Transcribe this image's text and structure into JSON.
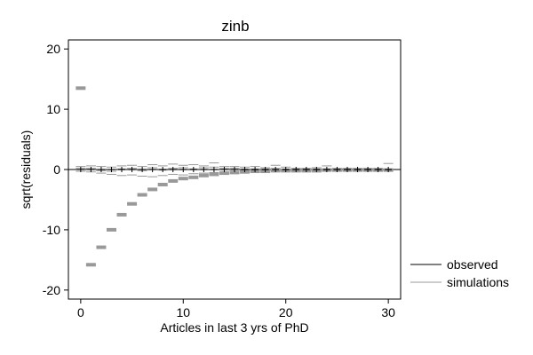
{
  "chart_data": {
    "type": "scatter",
    "title": "zinb",
    "xlabel": "Articles in last 3 yrs of PhD",
    "ylabel": "sqrt(residuals)",
    "xlim": [
      -1.2,
      31.2
    ],
    "ylim": [
      -21.5,
      21.5
    ],
    "x_ticks": [
      0,
      10,
      20,
      30
    ],
    "y_ticks": [
      -20,
      -10,
      0,
      10,
      20
    ],
    "reference_line_y": 0,
    "legend": {
      "placement": "right",
      "entries": [
        {
          "label": "observed",
          "color": "#000000"
        },
        {
          "label": "simulations",
          "color": "#999999"
        }
      ]
    },
    "series": [
      {
        "name": "observed",
        "color": "#000000",
        "x": [
          0,
          1,
          2,
          3,
          4,
          5,
          6,
          7,
          8,
          9,
          10,
          11,
          12,
          13,
          14,
          15,
          16,
          17,
          18,
          19,
          20,
          21,
          22,
          23,
          24,
          25,
          26,
          27,
          28,
          29,
          30
        ],
        "values": [
          0,
          0,
          0,
          0,
          0,
          0,
          0,
          0,
          0,
          0,
          0,
          0,
          0,
          0,
          0,
          0,
          0,
          0,
          0,
          0,
          0,
          0,
          0,
          0,
          0,
          0,
          0,
          0,
          0,
          0,
          0
        ]
      },
      {
        "name": "simulations",
        "color": "#999999",
        "x": [
          0,
          1,
          2,
          3,
          4,
          5,
          6,
          7,
          8,
          9,
          10,
          11,
          12,
          13,
          14,
          15,
          16,
          17,
          18,
          19,
          20,
          21,
          22,
          23,
          24,
          25,
          26,
          27,
          28,
          29,
          30
        ],
        "extreme_values": [
          13.5,
          -15.8,
          -12.9,
          -10,
          -7.5,
          -5.7,
          -4.2,
          -3.3,
          -2.5,
          -1.9,
          -1.5,
          -1.3,
          -1,
          -0.8,
          -0.6,
          -0.5,
          -0.4,
          -0.3,
          -0.3,
          -0.2,
          -0.2,
          -0.2,
          -0.2,
          -0.2,
          -0.1,
          -0.1,
          -0.1,
          -0.1,
          -0.1,
          -0.1,
          -0.1
        ],
        "spread": [
          [
            0.5,
            0.2,
            -0.3
          ],
          [
            0.6,
            0.2,
            -0.4
          ],
          [
            0.5,
            -0.2,
            -0.6
          ],
          [
            0.4,
            -0.3,
            -0.8
          ],
          [
            0.6,
            0.1,
            -1
          ],
          [
            0.7,
            0.2,
            -0.9
          ],
          [
            0.5,
            -0.2,
            -1.1
          ],
          [
            0.8,
            0.3,
            -1.2
          ],
          [
            0.6,
            -0.1,
            -1
          ],
          [
            0.9,
            0.2,
            -0.8
          ],
          [
            0.7,
            0.3,
            -0.9
          ],
          [
            0.8,
            0.1,
            -0.7
          ],
          [
            0.6,
            0.3,
            -0.6
          ],
          [
            1.1,
            0.4,
            -0.5
          ],
          [
            0.5,
            0.2,
            -0.4
          ],
          [
            0.5,
            0.2,
            -0.3
          ],
          [
            0.4,
            0.1,
            -0.4
          ],
          [
            0.5,
            0.1,
            -0.3
          ],
          [
            0.3,
            0.1,
            -0.3
          ],
          [
            0.7,
            0.2,
            -0.2
          ],
          [
            0.4,
            0.1,
            -0.2
          ],
          [
            0.2,
            0.1,
            -0.2
          ],
          [
            0.2,
            0.1,
            -0.1
          ],
          [
            0.3,
            0.1,
            -0.2
          ],
          [
            0.6,
            0.1,
            -0.1
          ],
          [
            0.2,
            0.1,
            -0.1
          ],
          [
            0.2,
            0.1,
            -0.1
          ],
          [
            0.2,
            0.1,
            -0.1
          ],
          [
            0.2,
            0.1,
            -0.1
          ],
          [
            0.2,
            0.1,
            -0.1
          ],
          [
            1,
            0.1,
            -0.1
          ]
        ]
      }
    ]
  }
}
